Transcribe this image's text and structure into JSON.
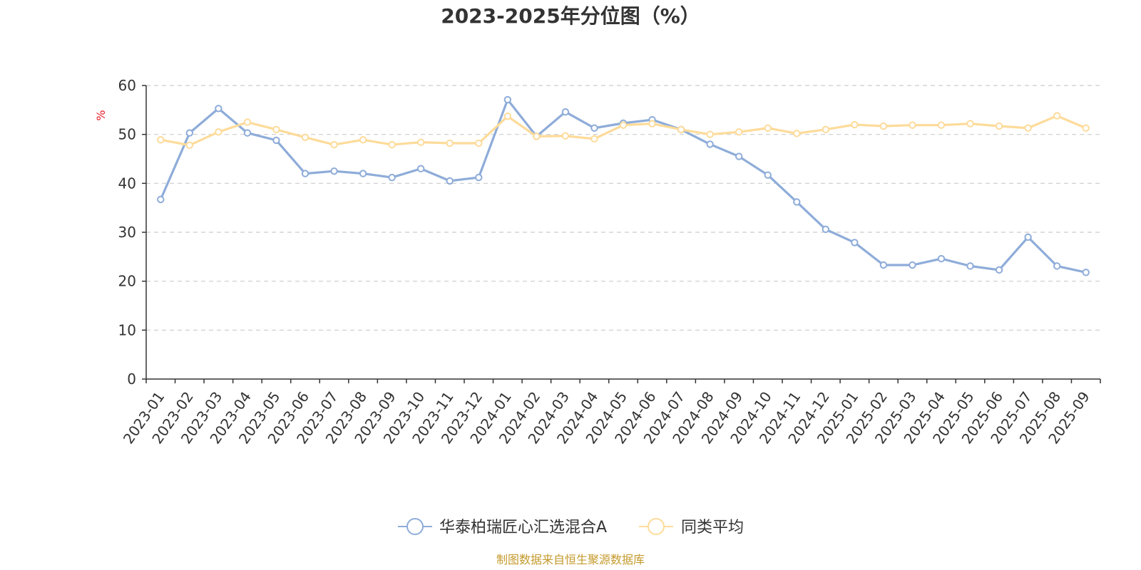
{
  "chart_data": {
    "type": "line",
    "title": "2023-2025年分位图（%）",
    "ylabel": "%",
    "ylim": [
      0,
      60
    ],
    "yticks": [
      0,
      10,
      20,
      30,
      40,
      50,
      60
    ],
    "grid": true,
    "legend_position": "bottom",
    "categories": [
      "2023-01",
      "2023-02",
      "2023-03",
      "2023-04",
      "2023-05",
      "2023-06",
      "2023-07",
      "2023-08",
      "2023-09",
      "2023-10",
      "2023-11",
      "2023-12",
      "2024-01",
      "2024-02",
      "2024-03",
      "2024-04",
      "2024-05",
      "2024-06",
      "2024-07",
      "2024-08",
      "2024-09",
      "2024-10",
      "2024-11",
      "2024-12",
      "2025-01",
      "2025-02",
      "2025-03",
      "2025-04",
      "2025-05",
      "2025-06",
      "2025-07",
      "2025-08",
      "2025-09"
    ],
    "series": [
      {
        "name": "华泰柏瑞匠心汇选混合A",
        "color": "#8eacd9",
        "values": [
          36.7,
          50.3,
          55.3,
          50.3,
          48.8,
          42.0,
          42.5,
          42.0,
          41.2,
          43.0,
          40.5,
          41.2,
          57.1,
          49.6,
          54.6,
          51.3,
          52.3,
          53.0,
          51.0,
          48.0,
          45.5,
          41.7,
          36.2,
          30.6,
          27.9,
          23.3,
          23.3,
          24.6,
          23.1,
          22.3,
          29.0,
          23.1,
          21.8
        ]
      },
      {
        "name": "同类平均",
        "color": "#fddb9a",
        "values": [
          48.9,
          47.8,
          50.5,
          52.5,
          51.0,
          49.4,
          47.9,
          48.9,
          47.9,
          48.4,
          48.2,
          48.2,
          53.7,
          49.6,
          49.7,
          49.1,
          51.9,
          52.2,
          51.0,
          50.0,
          50.5,
          51.3,
          50.2,
          51.0,
          52.0,
          51.7,
          51.9,
          51.9,
          52.2,
          51.7,
          51.3,
          53.8,
          51.3
        ]
      }
    ],
    "source": "制图数据来自恒生聚源数据库"
  }
}
